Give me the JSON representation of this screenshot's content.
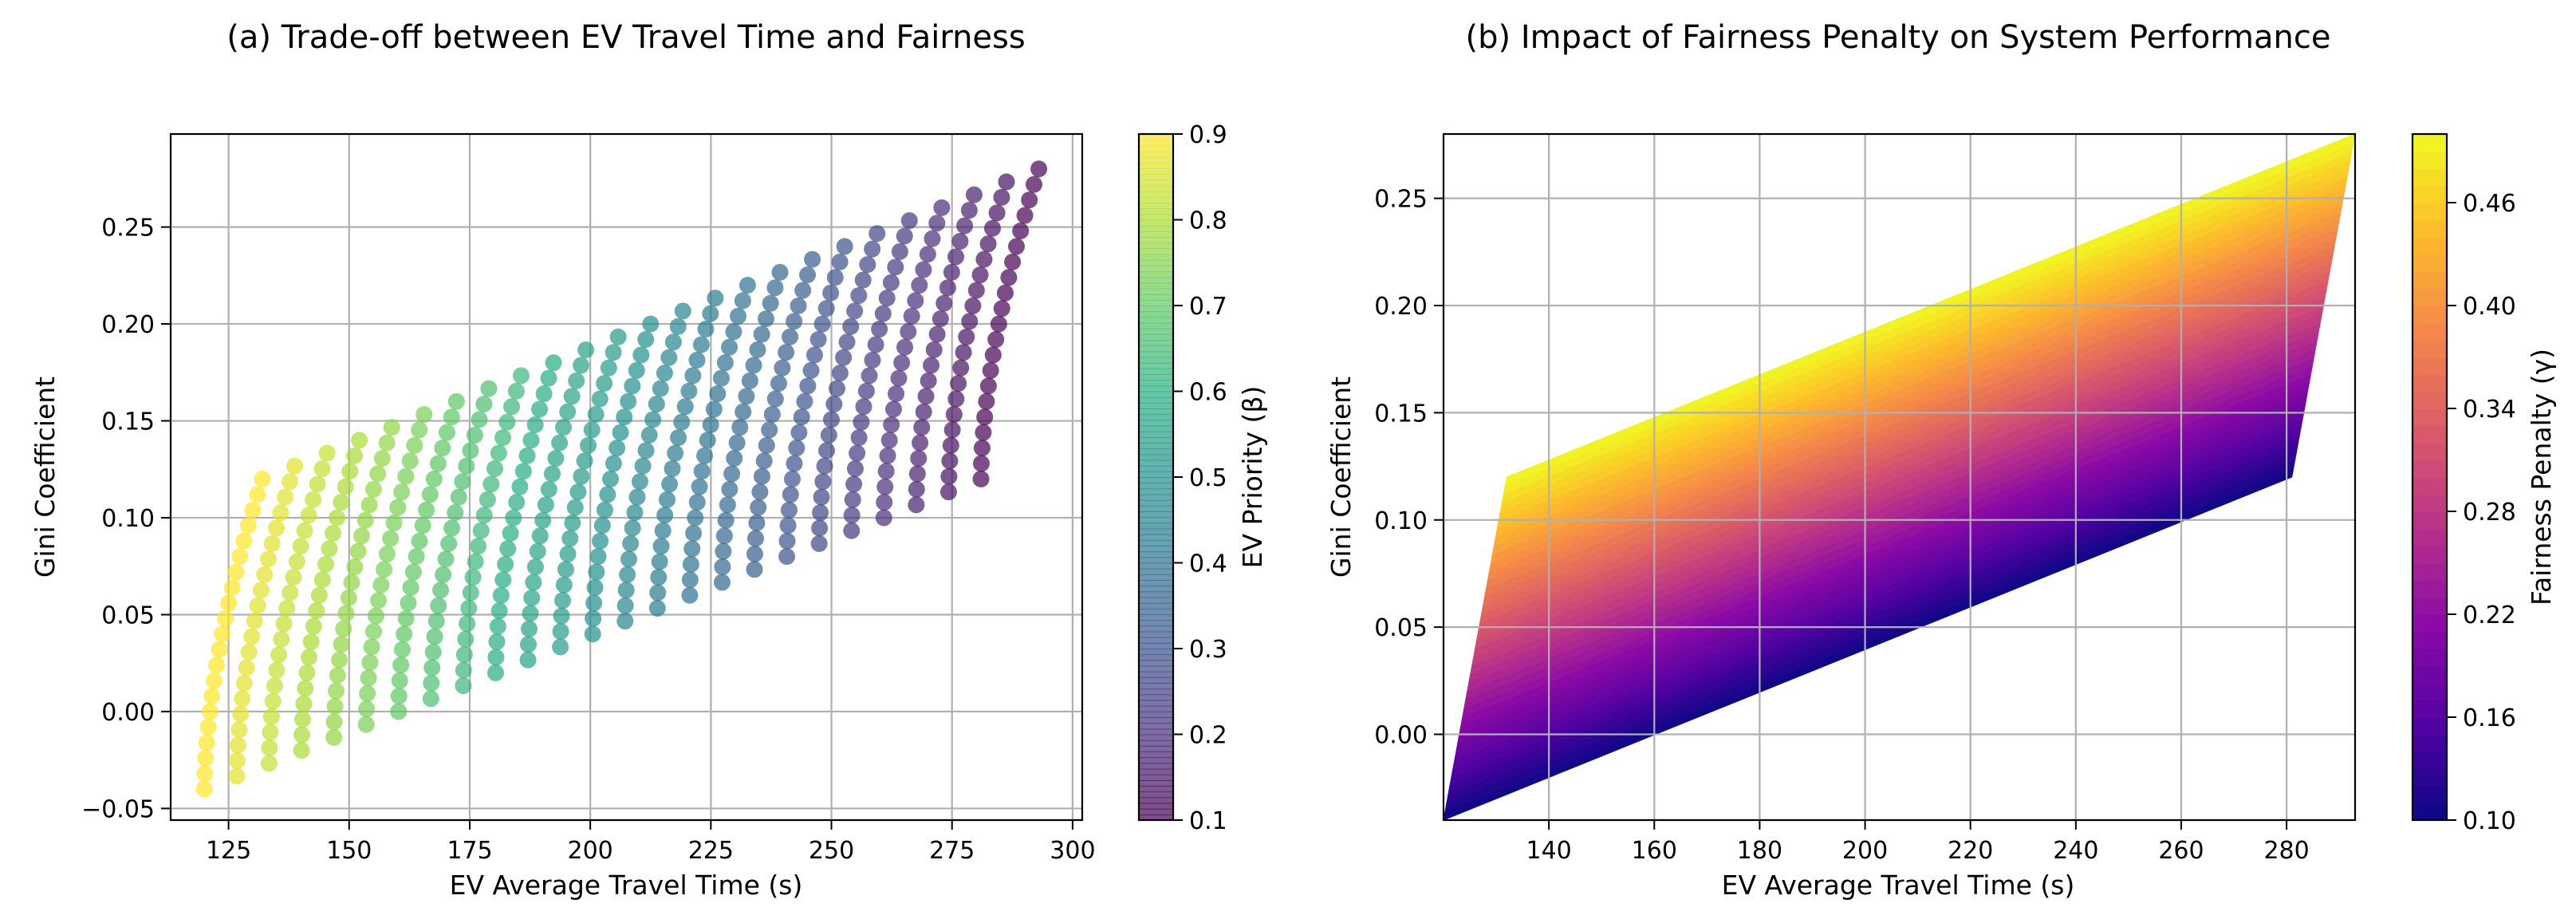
{
  "chart_data": [
    {
      "type": "scatter",
      "title": "(a) Trade-off between EV Travel Time and Fairness",
      "xlabel": "EV Average Travel Time (s)",
      "ylabel": "Gini Coefficient",
      "xlim": [
        113,
        302
      ],
      "ylim": [
        -0.056,
        0.298
      ],
      "xticks": [
        125,
        150,
        175,
        200,
        225,
        250,
        275,
        300
      ],
      "yticks": [
        -0.05,
        0.0,
        0.05,
        0.1,
        0.15,
        0.2,
        0.25
      ],
      "ytick_labels": [
        "−0.05",
        "0.00",
        "0.05",
        "0.10",
        "0.15",
        "0.20",
        "0.25"
      ],
      "grid": true,
      "colormap": "viridis",
      "point_alpha": 0.7,
      "colorbar": {
        "label": "EV Priority (β)",
        "range": [
          0.1,
          0.9
        ],
        "ticks": [
          0.1,
          0.2,
          0.3,
          0.4,
          0.5,
          0.6,
          0.7,
          0.8,
          0.9
        ]
      },
      "beta_values": [
        0.9,
        0.8667,
        0.8333,
        0.8,
        0.7667,
        0.7333,
        0.7,
        0.6667,
        0.6333,
        0.6,
        0.5667,
        0.5333,
        0.5,
        0.4667,
        0.4333,
        0.4,
        0.3667,
        0.3333,
        0.3,
        0.2667,
        0.2333,
        0.2,
        0.1667,
        0.1333,
        0.1
      ],
      "gamma_values": [
        0.1,
        0.12,
        0.14,
        0.16,
        0.18,
        0.2,
        0.22,
        0.24,
        0.26,
        0.28,
        0.3,
        0.32,
        0.34,
        0.36,
        0.38,
        0.4,
        0.42,
        0.44,
        0.46,
        0.48,
        0.5
      ],
      "column_bottoms": [
        {
          "beta": 0.9,
          "x": 120,
          "y": -0.04
        },
        {
          "beta": 0.1,
          "x": 281,
          "y": 0.12
        }
      ],
      "column_tops": [
        {
          "beta": 0.9,
          "x": 132,
          "y": 0.12
        },
        {
          "beta": 0.1,
          "x": 293,
          "y": 0.28
        }
      ],
      "points_per_column": 21,
      "num_columns": 25
    },
    {
      "type": "heatmap",
      "subtype": "filled-contour",
      "title": "(b) Impact of Fairness Penalty on System Performance",
      "xlabel": "EV Average Travel Time (s)",
      "ylabel": "Gini Coefficient",
      "xlim": [
        120,
        293
      ],
      "ylim": [
        -0.04,
        0.28
      ],
      "xticks": [
        140,
        160,
        180,
        200,
        220,
        240,
        260,
        280
      ],
      "yticks": [
        0.0,
        0.05,
        0.1,
        0.15,
        0.2,
        0.25
      ],
      "grid": true,
      "colormap": "plasma",
      "levels": 40,
      "region_vertices": [
        [
          120,
          -0.04
        ],
        [
          281,
          0.12
        ],
        [
          293,
          0.28
        ],
        [
          132,
          0.12
        ]
      ],
      "colorbar": {
        "label": "Fairness Penalty (γ)",
        "range": [
          0.1,
          0.5
        ],
        "ticks": [
          0.1,
          0.16,
          0.22,
          0.28,
          0.34,
          0.4,
          0.46
        ],
        "tick_labels": [
          "0.10",
          "0.16",
          "0.22",
          "0.28",
          "0.34",
          "0.40",
          "0.46"
        ]
      }
    }
  ]
}
